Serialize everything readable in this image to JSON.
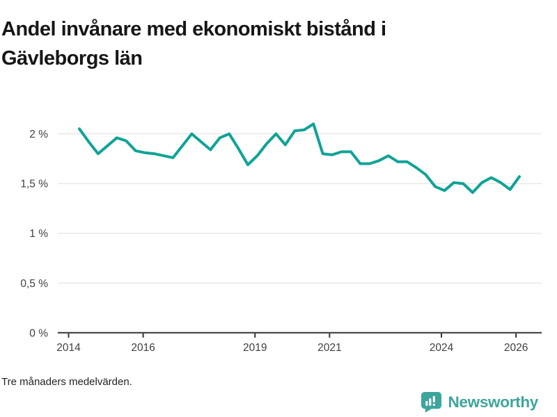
{
  "page": {
    "title": "Andel invånare med ekonomiskt bistånd i Gävleborgs län",
    "footnote": "Tre månaders medelvärden.",
    "background_color": "#ffffff"
  },
  "branding": {
    "logo_text": "Newsworthy",
    "logo_color": "#3da59c",
    "logo_icon": "speech-bubble-bar-chart-icon",
    "logo_icon_bar_color": "#ffffff"
  },
  "chart_data": {
    "type": "line",
    "title": "Andel invånare med ekonomiskt bistånd i Gävleborgs län",
    "note": "Tre månaders medelvärden.",
    "unit": "%",
    "decimal_separator": ",",
    "grid": "horizontal",
    "legend": "none",
    "line_color": "#0fa396",
    "ylim": [
      0,
      2.2
    ],
    "x": [
      "2014-04",
      "2014-07",
      "2014-10",
      "2015-01",
      "2015-04",
      "2015-07",
      "2015-10",
      "2016-01",
      "2016-04",
      "2016-07",
      "2016-10",
      "2017-01",
      "2017-04",
      "2017-07",
      "2017-10",
      "2018-01",
      "2018-04",
      "2018-07",
      "2018-10",
      "2019-01",
      "2019-04",
      "2019-07",
      "2019-10",
      "2020-01",
      "2020-04",
      "2020-07",
      "2020-10",
      "2021-01",
      "2021-04",
      "2021-07",
      "2021-10",
      "2022-01",
      "2022-04",
      "2022-07",
      "2022-10",
      "2023-01",
      "2023-04",
      "2023-07",
      "2023-10",
      "2024-01",
      "2024-04",
      "2024-07",
      "2024-10",
      "2025-01",
      "2025-04",
      "2025-07",
      "2025-10",
      "2026-01"
    ],
    "series": [
      {
        "name": "Andel invånare med ekonomiskt bistånd i Gävleborgs län",
        "values": [
          2.05,
          1.92,
          1.8,
          1.88,
          1.96,
          1.93,
          1.83,
          1.81,
          1.8,
          1.78,
          1.76,
          1.88,
          2.0,
          1.92,
          1.84,
          1.96,
          2.0,
          1.85,
          1.69,
          1.78,
          1.9,
          2.0,
          1.89,
          2.03,
          2.04,
          2.1,
          1.8,
          1.79,
          1.82,
          1.82,
          1.7,
          1.7,
          1.73,
          1.78,
          1.72,
          1.72,
          1.66,
          1.59,
          1.47,
          1.43,
          1.51,
          1.5,
          1.41,
          1.51,
          1.56,
          1.51,
          1.44,
          1.57
        ]
      }
    ],
    "y_ticks": [
      {
        "value": 0,
        "label": "0 %"
      },
      {
        "value": 0.5,
        "label": "0,5 %"
      },
      {
        "value": 1,
        "label": "1 %"
      },
      {
        "value": 1.5,
        "label": "1,5 %"
      },
      {
        "value": 2,
        "label": "2 %"
      }
    ],
    "x_ticks": [
      {
        "year": 2014,
        "label": "2014"
      },
      {
        "year": 2016,
        "label": "2016"
      },
      {
        "year": 2019,
        "label": "2019"
      },
      {
        "year": 2021,
        "label": "2021"
      },
      {
        "year": 2024,
        "label": "2024"
      },
      {
        "year": 2026,
        "label": "2026"
      }
    ]
  }
}
